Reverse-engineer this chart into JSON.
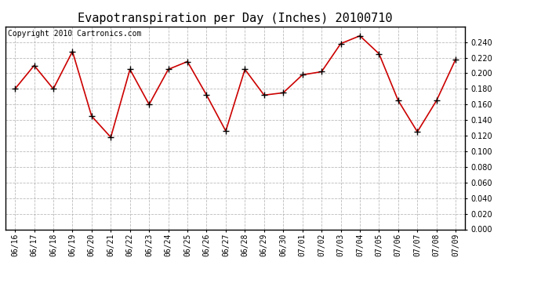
{
  "title": "Evapotranspiration per Day (Inches) 20100710",
  "copyright": "Copyright 2010 Cartronics.com",
  "x_labels": [
    "06/16",
    "06/17",
    "06/18",
    "06/19",
    "06/20",
    "06/21",
    "06/22",
    "06/23",
    "06/24",
    "06/25",
    "06/26",
    "06/27",
    "06/28",
    "06/29",
    "06/30",
    "07/01",
    "07/02",
    "07/03",
    "07/04",
    "07/05",
    "07/06",
    "07/07",
    "07/08",
    "07/09"
  ],
  "y_values": [
    0.18,
    0.21,
    0.18,
    0.228,
    0.145,
    0.118,
    0.205,
    0.16,
    0.205,
    0.215,
    0.172,
    0.126,
    0.205,
    0.172,
    0.175,
    0.198,
    0.202,
    0.238,
    0.248,
    0.225,
    0.165,
    0.125,
    0.165,
    0.218
  ],
  "line_color": "#cc0000",
  "marker": "+",
  "marker_size": 6,
  "marker_color": "#000000",
  "ylim_min": 0.0,
  "ylim_max": 0.26,
  "ytick_step": 0.02,
  "ytick_max_label": 0.24,
  "background_color": "#ffffff",
  "grid_color": "#aaaaaa",
  "grid_linestyle": "--",
  "title_fontsize": 11,
  "copyright_fontsize": 7,
  "tick_fontsize": 7,
  "border_color": "#000000"
}
